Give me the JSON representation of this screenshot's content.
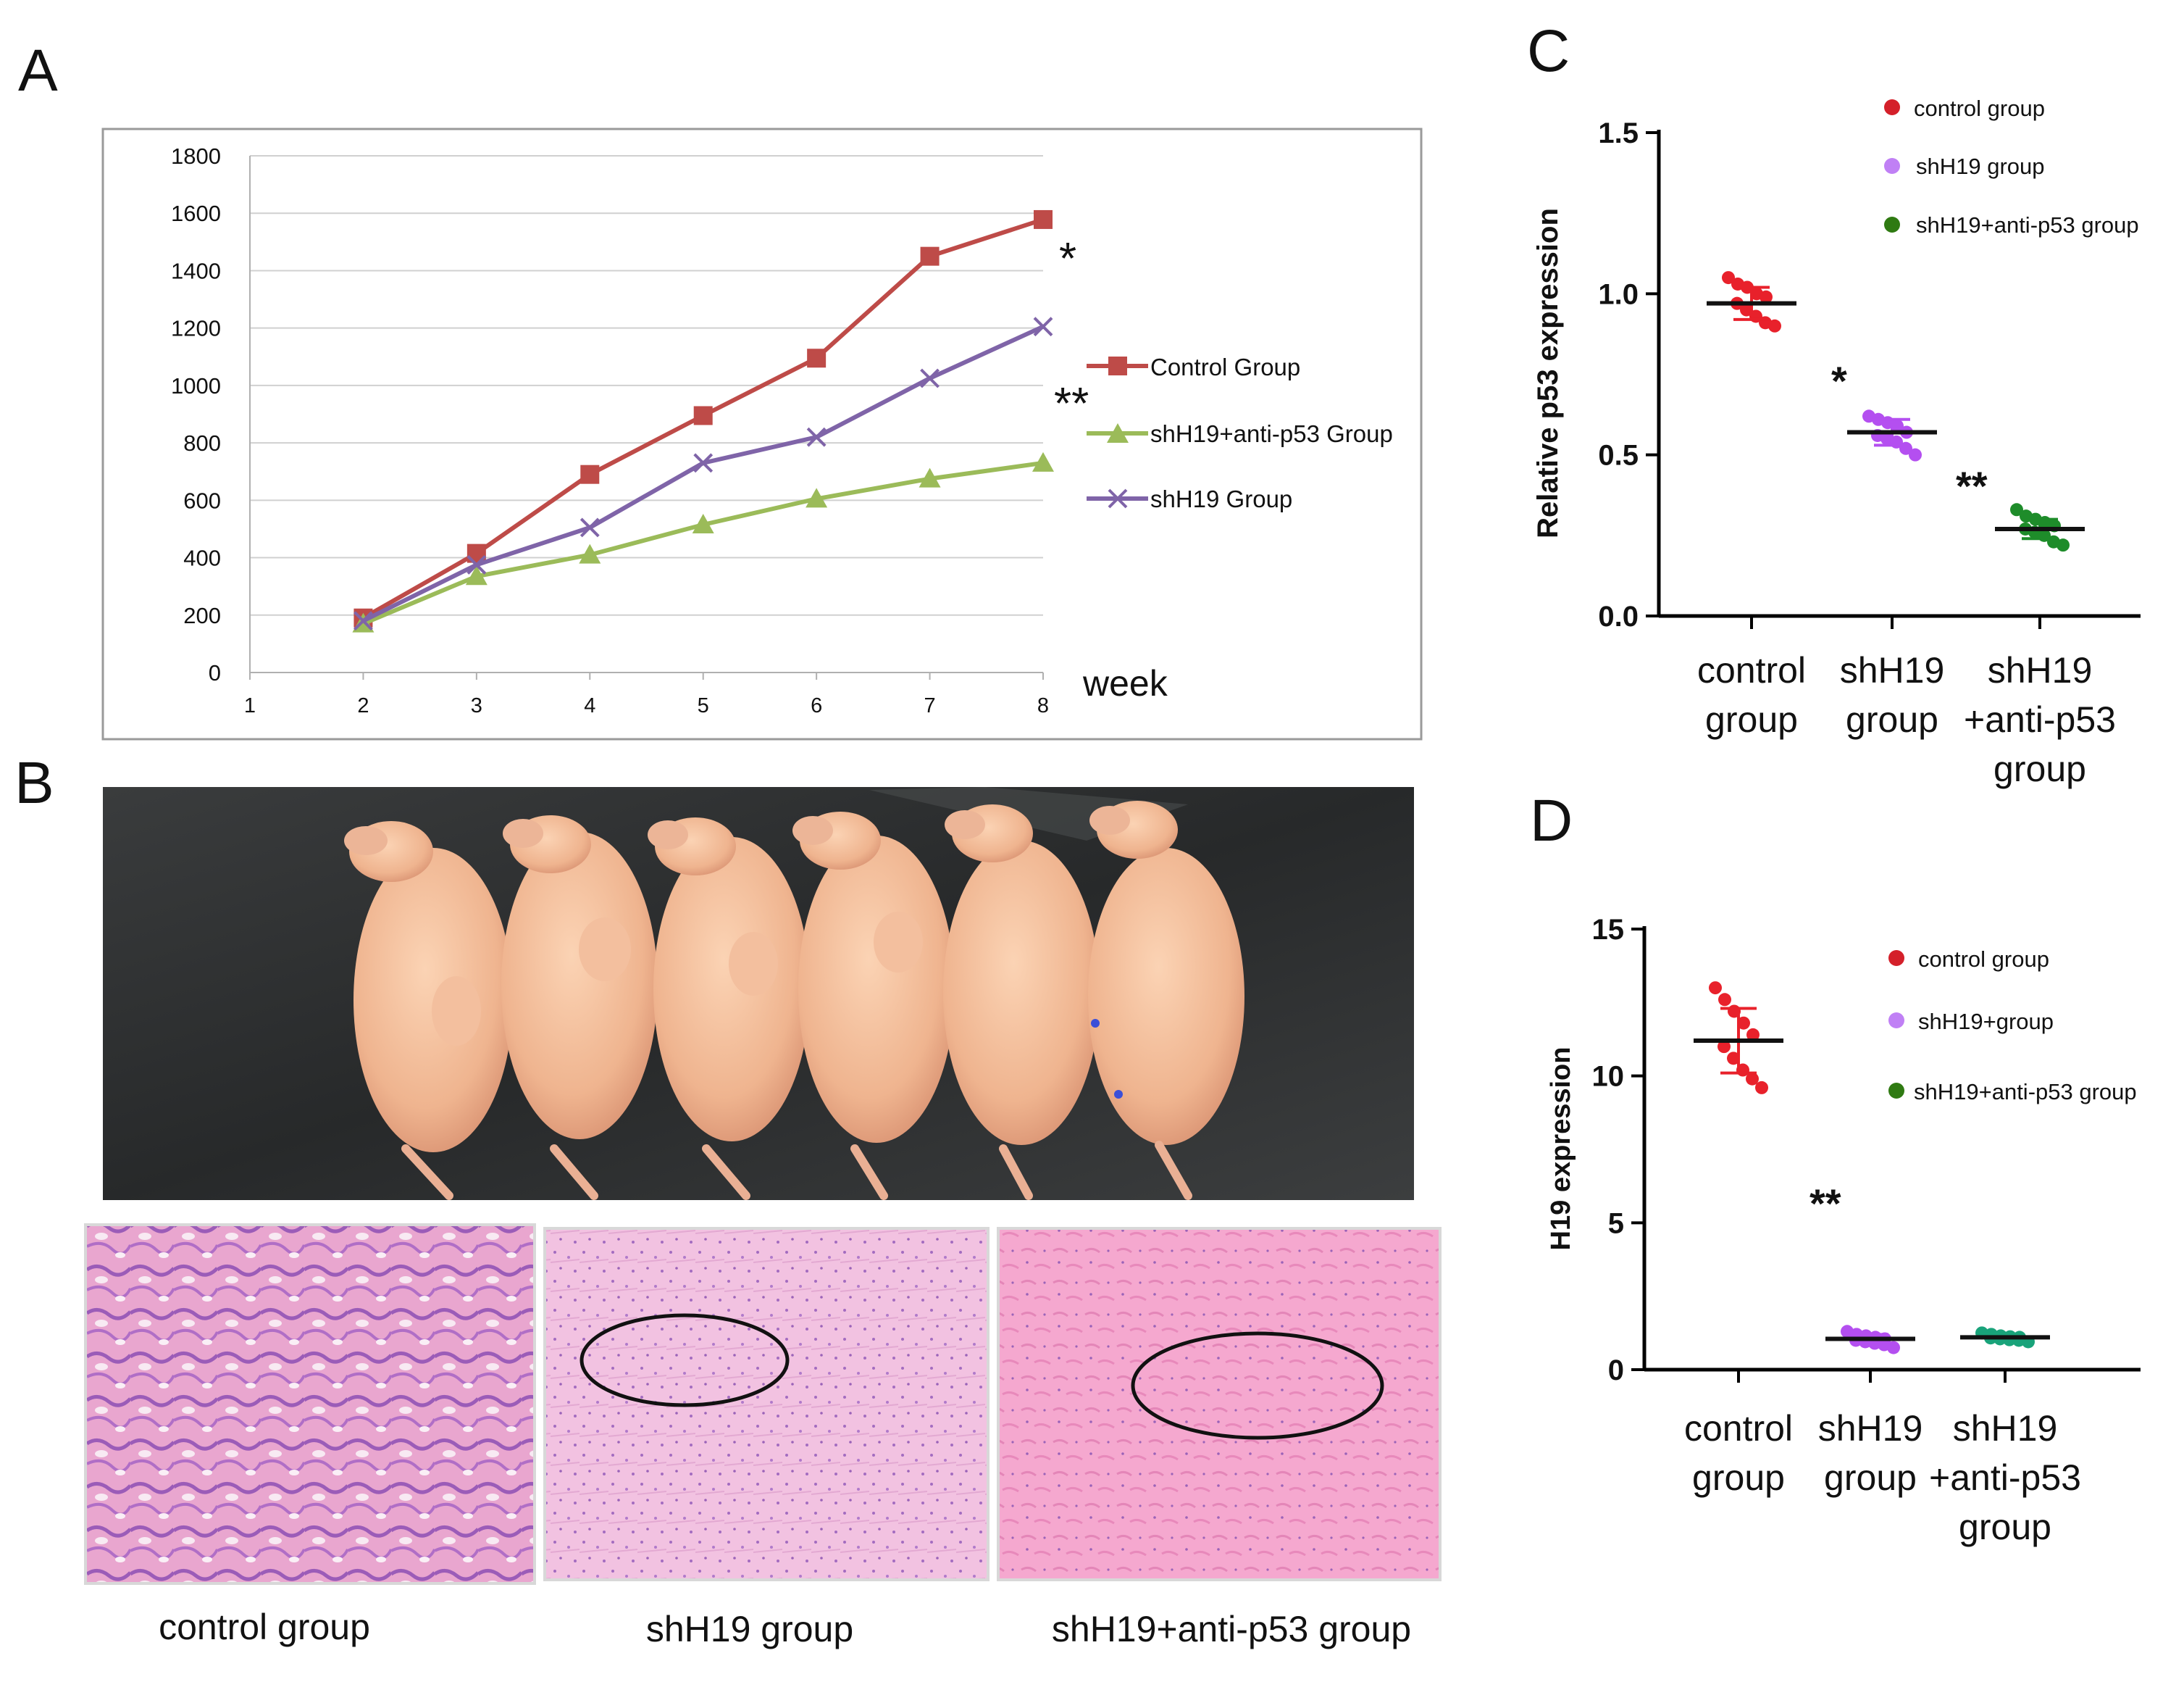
{
  "panel_labels": [
    "A",
    "B",
    "C",
    "D"
  ],
  "colors": {
    "control_line": "#be4b48",
    "anti_line": "#9bbb59",
    "shh19_line": "#7f64a8",
    "control_dot": "#e8212b",
    "shh19_dot": "#b44ff0",
    "anti_dot": "#1e8c2a",
    "anti_dot_d": "#19a37a",
    "legend_control": "#d4202a",
    "legend_shh19": "#c080f5",
    "legend_anti": "#2f7a12"
  },
  "chart_data": [
    {
      "id": "A",
      "type": "line",
      "title": "",
      "xlabel": "week",
      "ylabel": "",
      "x_ticks": [
        "1",
        "2",
        "3",
        "4",
        "5",
        "6",
        "7",
        "8"
      ],
      "y_ticks": [
        "0",
        "200",
        "400",
        "600",
        "800",
        "1000",
        "1200",
        "1400",
        "1600",
        "1800"
      ],
      "ylim": [
        0,
        1800
      ],
      "grid": true,
      "x": [
        2,
        3,
        4,
        5,
        6,
        7,
        8
      ],
      "series": [
        {
          "name": "Control Group",
          "marker": "square",
          "values": [
            190,
            415,
            690,
            895,
            1095,
            1450,
            1578
          ]
        },
        {
          "name": "shH19+anti-p53 Group",
          "marker": "triangle",
          "values": [
            170,
            335,
            410,
            515,
            605,
            675,
            730
          ]
        },
        {
          "name": "shH19 Group",
          "marker": "x",
          "values": [
            180,
            375,
            505,
            730,
            820,
            1025,
            1205
          ]
        }
      ],
      "annotations": [
        "*",
        "**"
      ]
    },
    {
      "id": "C",
      "type": "scatter",
      "ylabel": "Relative p53 expression",
      "y_ticks": [
        "0.0",
        "0.5",
        "1.0",
        "1.5"
      ],
      "ylim": [
        0,
        1.5
      ],
      "categories": [
        [
          "control",
          "group"
        ],
        [
          "shH19",
          "group"
        ],
        [
          "shH19",
          "+anti-p53",
          "group"
        ]
      ],
      "groups": [
        {
          "name": "control group",
          "mean": 0.97,
          "sd": 0.05,
          "points": [
            1.05,
            1.03,
            1.02,
            1.0,
            0.99,
            0.97,
            0.95,
            0.93,
            0.91,
            0.9
          ]
        },
        {
          "name": "shH19 group",
          "mean": 0.57,
          "sd": 0.04,
          "points": [
            0.62,
            0.61,
            0.6,
            0.59,
            0.57,
            0.56,
            0.55,
            0.54,
            0.52,
            0.5
          ]
        },
        {
          "name": "shH19+anti-p53 group",
          "mean": 0.27,
          "sd": 0.03,
          "points": [
            0.33,
            0.31,
            0.3,
            0.29,
            0.28,
            0.27,
            0.26,
            0.25,
            0.23,
            0.22
          ]
        }
      ],
      "legend": [
        "control group",
        "shH19 group",
        "shH19+anti-p53 group"
      ],
      "annotations": [
        "*",
        "**"
      ]
    },
    {
      "id": "D",
      "type": "scatter",
      "ylabel": "H19 expression",
      "y_ticks": [
        "0",
        "5",
        "10",
        "15"
      ],
      "ylim": [
        0,
        15
      ],
      "categories": [
        [
          "control",
          "group"
        ],
        [
          "shH19",
          "group"
        ],
        [
          "shH19",
          "+anti-p53",
          "group"
        ]
      ],
      "groups": [
        {
          "name": "control group",
          "mean": 11.2,
          "sd": 1.1,
          "points": [
            13.0,
            12.6,
            12.2,
            11.8,
            11.4,
            11.0,
            10.6,
            10.2,
            9.9,
            9.6
          ]
        },
        {
          "name": "shH19+group",
          "mean": 1.05,
          "sd": 0.15,
          "points": [
            1.3,
            1.2,
            1.15,
            1.1,
            1.05,
            1.0,
            0.95,
            0.9,
            0.85,
            0.75
          ]
        },
        {
          "name": "shH19+anti-p53 group",
          "mean": 1.1,
          "sd": 0.1,
          "points": [
            1.25,
            1.2,
            1.15,
            1.12,
            1.1,
            1.08,
            1.05,
            1.02,
            1.0,
            0.95
          ]
        }
      ],
      "legend": [
        "control group",
        "shH19+group",
        "shH19+anti-p53 group"
      ],
      "annotations": [
        "**"
      ]
    }
  ],
  "histology_labels": [
    "control group",
    "shH19 group",
    "shH19+anti-p53 group"
  ]
}
